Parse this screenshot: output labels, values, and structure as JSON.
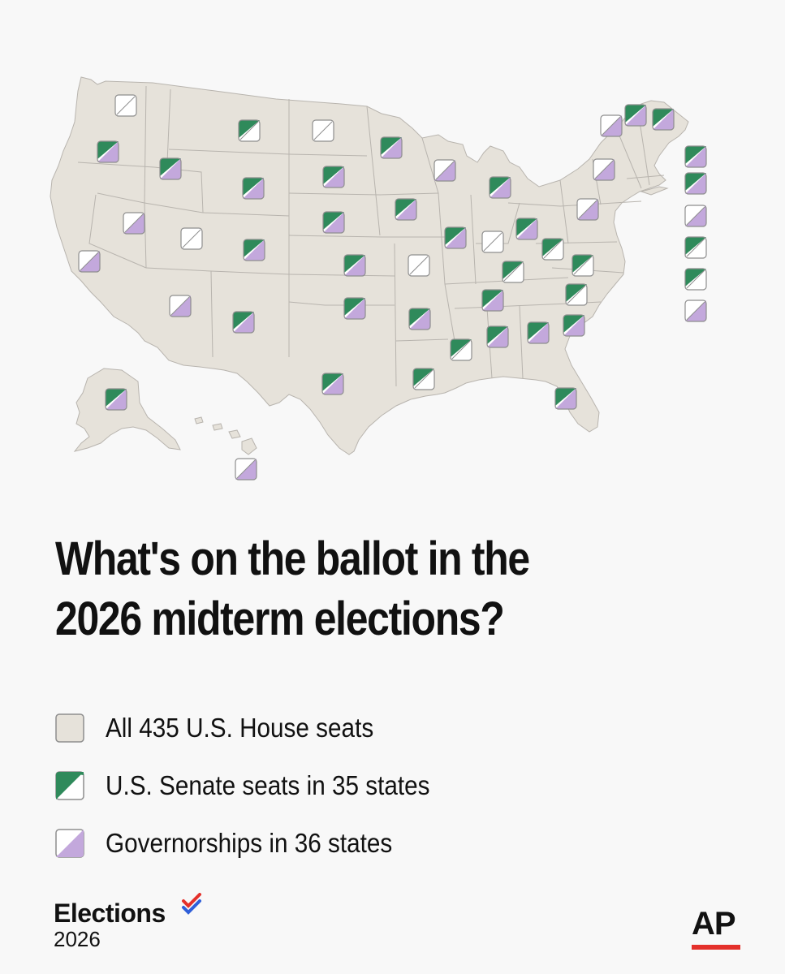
{
  "title_lines": [
    "What's on the ballot in the",
    "2026 midterm elections?"
  ],
  "colors": {
    "land": "#e6e2da",
    "border": "#b8b4ae",
    "senate_green": "#2f8a5b",
    "governor_purple": "#c3a8dc",
    "marker_blank": "#ffffff",
    "marker_outline": "#8e8e8e",
    "ap_red": "#e4312b",
    "check_red": "#e4312b",
    "check_blue": "#2f5fd9"
  },
  "legend": [
    {
      "id": "house",
      "label": "All 435 U.S. House seats",
      "swatch": "house-swatch-icon"
    },
    {
      "id": "senate",
      "label": "U.S. Senate seats in 35 states",
      "swatch": "senate-swatch-icon"
    },
    {
      "id": "governor",
      "label": "Governorships in 36 states",
      "swatch": "governor-swatch-icon"
    }
  ],
  "brand": {
    "name": "Elections",
    "year": "2026",
    "icon": "checkmark-icon"
  },
  "publisher": "AP",
  "races": [
    {
      "state": "WA",
      "senate": false,
      "governor": false
    },
    {
      "state": "OR",
      "senate": true,
      "governor": true
    },
    {
      "state": "CA",
      "senate": false,
      "governor": true
    },
    {
      "state": "NV",
      "senate": false,
      "governor": true
    },
    {
      "state": "ID",
      "senate": true,
      "governor": true
    },
    {
      "state": "MT",
      "senate": true,
      "governor": false
    },
    {
      "state": "WY",
      "senate": true,
      "governor": true
    },
    {
      "state": "UT",
      "senate": false,
      "governor": false
    },
    {
      "state": "CO",
      "senate": true,
      "governor": true
    },
    {
      "state": "AZ",
      "senate": false,
      "governor": true
    },
    {
      "state": "NM",
      "senate": true,
      "governor": true
    },
    {
      "state": "ND",
      "senate": false,
      "governor": false
    },
    {
      "state": "SD",
      "senate": true,
      "governor": true
    },
    {
      "state": "NE",
      "senate": true,
      "governor": true
    },
    {
      "state": "KS",
      "senate": true,
      "governor": true
    },
    {
      "state": "OK",
      "senate": true,
      "governor": true
    },
    {
      "state": "TX",
      "senate": true,
      "governor": true
    },
    {
      "state": "MN",
      "senate": true,
      "governor": true
    },
    {
      "state": "IA",
      "senate": true,
      "governor": true
    },
    {
      "state": "MO",
      "senate": false,
      "governor": false
    },
    {
      "state": "AR",
      "senate": true,
      "governor": true
    },
    {
      "state": "LA",
      "senate": true,
      "governor": false
    },
    {
      "state": "WI",
      "senate": false,
      "governor": true
    },
    {
      "state": "IL",
      "senate": true,
      "governor": true
    },
    {
      "state": "MI",
      "senate": true,
      "governor": true
    },
    {
      "state": "IN",
      "senate": false,
      "governor": false
    },
    {
      "state": "OH",
      "senate": true,
      "governor": true
    },
    {
      "state": "KY",
      "senate": true,
      "governor": false
    },
    {
      "state": "TN",
      "senate": true,
      "governor": true
    },
    {
      "state": "MS",
      "senate": true,
      "governor": false
    },
    {
      "state": "AL",
      "senate": true,
      "governor": true
    },
    {
      "state": "GA",
      "senate": true,
      "governor": true
    },
    {
      "state": "FL",
      "senate": true,
      "governor": true
    },
    {
      "state": "SC",
      "senate": true,
      "governor": true
    },
    {
      "state": "NC",
      "senate": true,
      "governor": false
    },
    {
      "state": "VA",
      "senate": true,
      "governor": false
    },
    {
      "state": "WV",
      "senate": true,
      "governor": false
    },
    {
      "state": "PA",
      "senate": false,
      "governor": true
    },
    {
      "state": "NY",
      "senate": false,
      "governor": true
    },
    {
      "state": "VT",
      "senate": false,
      "governor": true
    },
    {
      "state": "NH",
      "senate": true,
      "governor": true
    },
    {
      "state": "ME",
      "senate": true,
      "governor": true
    },
    {
      "state": "MA",
      "senate": true,
      "governor": true
    },
    {
      "state": "RI",
      "senate": true,
      "governor": true
    },
    {
      "state": "CT",
      "senate": false,
      "governor": true
    },
    {
      "state": "NJ",
      "senate": true,
      "governor": false
    },
    {
      "state": "DE",
      "senate": true,
      "governor": false
    },
    {
      "state": "MD",
      "senate": false,
      "governor": true
    },
    {
      "state": "AK",
      "senate": true,
      "governor": true
    },
    {
      "state": "HI",
      "senate": false,
      "governor": true
    }
  ]
}
